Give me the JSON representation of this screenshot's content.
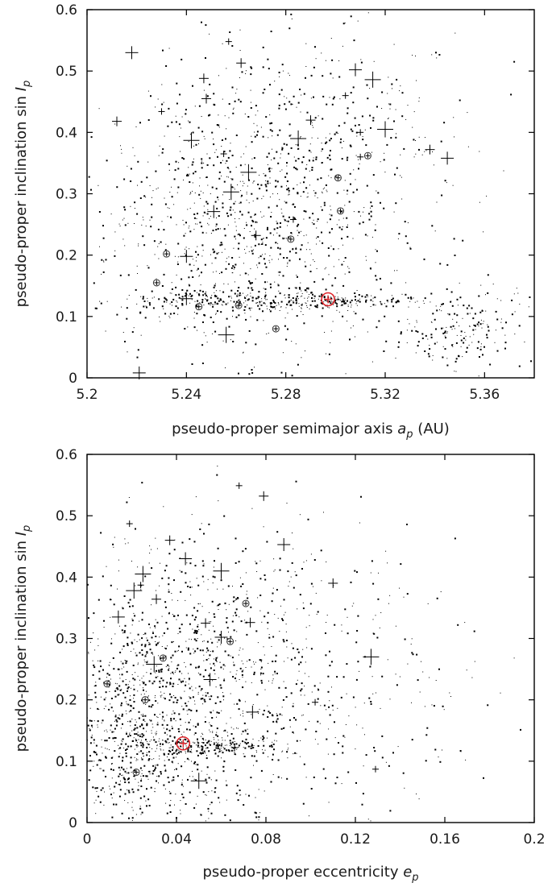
{
  "chart_data": [
    {
      "type": "scatter",
      "xlabel": "pseudo-proper semimajor axis",
      "xlabel_symbol": "a",
      "xlabel_sub": "p",
      "xlabel_unit": "(AU)",
      "ylabel": "pseudo-proper inclination sin",
      "ylabel_symbol": "I",
      "ylabel_sub": "p",
      "xlim": [
        5.2,
        5.38
      ],
      "ylim": [
        0,
        0.6
      ],
      "xticks": [
        "5.2",
        "5.24",
        "5.28",
        "5.32",
        "5.36"
      ],
      "yticks": [
        "0",
        "0.1",
        "0.2",
        "0.3",
        "0.4",
        "0.5",
        "0.6"
      ],
      "grid": false,
      "highlight": {
        "x": 5.297,
        "y": 0.128,
        "color": "#e0242a"
      },
      "crosses": [
        [
          5.257,
          0.548
        ],
        [
          5.247,
          0.488
        ],
        [
          5.218,
          0.53
        ],
        [
          5.285,
          0.39
        ],
        [
          5.304,
          0.46
        ],
        [
          5.248,
          0.455
        ],
        [
          5.24,
          0.198
        ],
        [
          5.256,
          0.07
        ],
        [
          5.31,
          0.36
        ],
        [
          5.338,
          0.372
        ],
        [
          5.345,
          0.358
        ],
        [
          5.315,
          0.486
        ],
        [
          5.255,
          0.365
        ],
        [
          5.29,
          0.42
        ],
        [
          5.221,
          0.008
        ],
        [
          5.265,
          0.335
        ],
        [
          5.283,
          0.258
        ],
        [
          5.268,
          0.232
        ],
        [
          5.251,
          0.271
        ],
        [
          5.258,
          0.303
        ],
        [
          5.31,
          0.4
        ],
        [
          5.212,
          0.418
        ],
        [
          5.24,
          0.129
        ],
        [
          5.242,
          0.387
        ],
        [
          5.23,
          0.434
        ],
        [
          5.262,
          0.513
        ],
        [
          5.308,
          0.502
        ],
        [
          5.32,
          0.405
        ]
      ],
      "circles": [
        [
          5.232,
          0.202
        ],
        [
          5.228,
          0.155
        ],
        [
          5.245,
          0.116
        ],
        [
          5.276,
          0.08
        ],
        [
          5.301,
          0.326
        ],
        [
          5.302,
          0.272
        ],
        [
          5.313,
          0.362
        ],
        [
          5.282,
          0.226
        ],
        [
          5.261,
          0.118
        ]
      ],
      "background": {
        "n": 1900,
        "seed": 7,
        "clusters": [
          {
            "x": 5.262,
            "y": 0.235,
            "sx": 0.03,
            "sy": 0.11,
            "w": 0.5
          },
          {
            "x": 5.3,
            "y": 0.125,
            "sx": 0.018,
            "sy": 0.006,
            "w": 0.1
          },
          {
            "x": 5.255,
            "y": 0.125,
            "sx": 0.02,
            "sy": 0.009,
            "w": 0.08
          },
          {
            "x": 5.35,
            "y": 0.08,
            "sx": 0.012,
            "sy": 0.035,
            "w": 0.1
          },
          {
            "x": 5.29,
            "y": 0.38,
            "sx": 0.03,
            "sy": 0.1,
            "w": 0.22
          }
        ]
      }
    },
    {
      "type": "scatter",
      "xlabel": "pseudo-proper eccentricity",
      "xlabel_symbol": "e",
      "xlabel_sub": "p",
      "xlabel_unit": "",
      "ylabel": "pseudo-proper inclination sin",
      "ylabel_symbol": "I",
      "ylabel_sub": "p",
      "xlim": [
        0,
        0.2
      ],
      "ylim": [
        0,
        0.6
      ],
      "xticks": [
        "0",
        "0.04",
        "0.08",
        "0.12",
        "0.16",
        "0.2"
      ],
      "yticks": [
        "0",
        "0.1",
        "0.2",
        "0.3",
        "0.4",
        "0.5",
        "0.6"
      ],
      "grid": false,
      "highlight": {
        "x": 0.043,
        "y": 0.129,
        "color": "#e0242a"
      },
      "crosses": [
        [
          0.068,
          0.549
        ],
        [
          0.079,
          0.532
        ],
        [
          0.088,
          0.453
        ],
        [
          0.021,
          0.378
        ],
        [
          0.024,
          0.387
        ],
        [
          0.053,
          0.325
        ],
        [
          0.06,
          0.302
        ],
        [
          0.05,
          0.068
        ],
        [
          0.102,
          0.196
        ],
        [
          0.11,
          0.39
        ],
        [
          0.014,
          0.335
        ],
        [
          0.127,
          0.27
        ],
        [
          0.129,
          0.087
        ],
        [
          0.031,
          0.364
        ],
        [
          0.044,
          0.43
        ],
        [
          0.03,
          0.258
        ],
        [
          0.066,
          0.122
        ],
        [
          0.073,
          0.326
        ],
        [
          0.055,
          0.233
        ],
        [
          0.025,
          0.405
        ],
        [
          0.019,
          0.487
        ],
        [
          0.037,
          0.46
        ],
        [
          0.074,
          0.18
        ],
        [
          0.06,
          0.41
        ]
      ],
      "circles": [
        [
          0.009,
          0.226
        ],
        [
          0.026,
          0.2
        ],
        [
          0.034,
          0.268
        ],
        [
          0.071,
          0.357
        ],
        [
          0.022,
          0.082
        ],
        [
          0.064,
          0.295
        ]
      ],
      "background": {
        "n": 1900,
        "seed": 11,
        "clusters": [
          {
            "x": 0.04,
            "y": 0.215,
            "sx": 0.028,
            "sy": 0.115,
            "w": 0.55
          },
          {
            "x": 0.055,
            "y": 0.125,
            "sx": 0.015,
            "sy": 0.007,
            "w": 0.08
          },
          {
            "x": 0.02,
            "y": 0.12,
            "sx": 0.015,
            "sy": 0.06,
            "w": 0.17
          },
          {
            "x": 0.1,
            "y": 0.25,
            "sx": 0.04,
            "sy": 0.13,
            "w": 0.2
          }
        ]
      }
    }
  ]
}
